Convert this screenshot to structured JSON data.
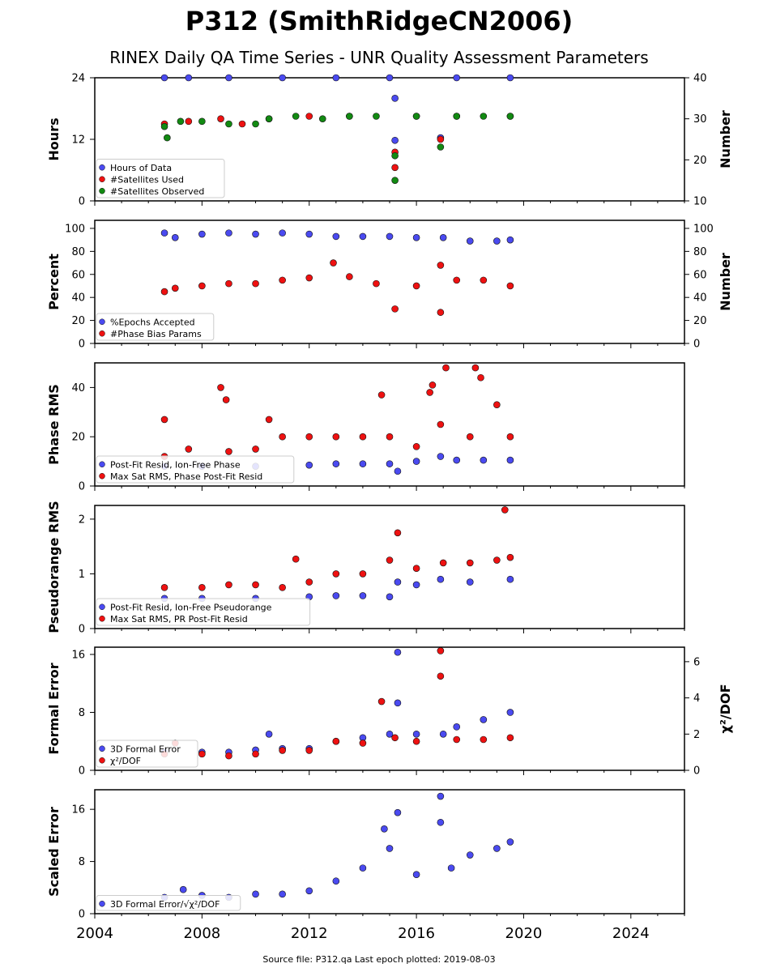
{
  "title": "P312 (SmithRidgeCN2006)",
  "subtitle": "RINEX Daily QA Time Series - UNR Quality Assessment Parameters",
  "footer": "Source file: P312.qa Last epoch plotted: 2019-08-03",
  "colors": {
    "blue": "#4a4af0",
    "red": "#ee1111",
    "green": "#128a12"
  },
  "chart_data": {
    "type": "scatter",
    "x_axis": {
      "ticks": [
        2004,
        2008,
        2012,
        2016,
        2020,
        2024
      ],
      "xlim": [
        2004,
        2026
      ]
    },
    "panels": [
      {
        "ylabel_left": "Hours",
        "ylabel_right": "Number",
        "yticks_left": [
          0,
          12,
          24
        ],
        "ylim_left": [
          0,
          24
        ],
        "yticks_right": [
          10,
          20,
          30,
          40
        ],
        "ylim_right": [
          10,
          40
        ],
        "series": [
          {
            "name": "Hours of Data",
            "color": "blue",
            "axis": "left",
            "points": [
              [
                2006.6,
                24
              ],
              [
                2007.5,
                24
              ],
              [
                2009,
                24
              ],
              [
                2011,
                24
              ],
              [
                2013,
                24
              ],
              [
                2015,
                24
              ],
              [
                2015.2,
                20
              ],
              [
                2015.2,
                11.8
              ],
              [
                2016.9,
                12.3
              ],
              [
                2017.5,
                24
              ],
              [
                2019.5,
                24
              ]
            ]
          },
          {
            "name": "#Satellites Used",
            "color": "red",
            "axis": "left",
            "points": [
              [
                2006.6,
                15
              ],
              [
                2007.5,
                15.5
              ],
              [
                2008.7,
                16
              ],
              [
                2009.5,
                15
              ],
              [
                2010.5,
                16
              ],
              [
                2012,
                16.5
              ],
              [
                2013.5,
                16.5
              ],
              [
                2015.2,
                6.5
              ],
              [
                2015.2,
                9.5
              ],
              [
                2016,
                16.5
              ],
              [
                2016.9,
                12
              ],
              [
                2017.5,
                16.5
              ],
              [
                2019.5,
                16.5
              ]
            ]
          },
          {
            "name": "#Satellites Observed",
            "color": "green",
            "axis": "left",
            "points": [
              [
                2006.6,
                14.5
              ],
              [
                2006.7,
                12.3
              ],
              [
                2007.2,
                15.5
              ],
              [
                2008,
                15.5
              ],
              [
                2009,
                15
              ],
              [
                2010,
                15
              ],
              [
                2010.5,
                16
              ],
              [
                2011.5,
                16.5
              ],
              [
                2012.5,
                16
              ],
              [
                2013.5,
                16.5
              ],
              [
                2014.5,
                16.5
              ],
              [
                2015.2,
                4
              ],
              [
                2015.2,
                8.8
              ],
              [
                2016,
                16.5
              ],
              [
                2016.9,
                10.5
              ],
              [
                2017.5,
                16.5
              ],
              [
                2018.5,
                16.5
              ],
              [
                2019.5,
                16.5
              ]
            ]
          }
        ]
      },
      {
        "ylabel_left": "Percent",
        "ylabel_right": "Number",
        "yticks_left": [
          0,
          20,
          40,
          60,
          80,
          100
        ],
        "ylim_left": [
          0,
          107
        ],
        "yticks_right": [
          0,
          20,
          40,
          60,
          80,
          100
        ],
        "ylim_right": [
          0,
          107
        ],
        "series": [
          {
            "name": "%Epochs Accepted",
            "color": "blue",
            "axis": "left",
            "points": [
              [
                2006.6,
                96
              ],
              [
                2007,
                92
              ],
              [
                2008,
                95
              ],
              [
                2009,
                96
              ],
              [
                2010,
                95
              ],
              [
                2011,
                96
              ],
              [
                2012,
                95
              ],
              [
                2013,
                93
              ],
              [
                2014,
                93
              ],
              [
                2015,
                93
              ],
              [
                2016,
                92
              ],
              [
                2017,
                92
              ],
              [
                2018,
                89
              ],
              [
                2019,
                89
              ],
              [
                2019.5,
                90
              ]
            ]
          },
          {
            "name": "#Phase Bias Params",
            "color": "red",
            "axis": "left",
            "points": [
              [
                2006.6,
                45
              ],
              [
                2007,
                48
              ],
              [
                2008,
                50
              ],
              [
                2009,
                52
              ],
              [
                2010,
                52
              ],
              [
                2011,
                55
              ],
              [
                2012,
                57
              ],
              [
                2012.9,
                70
              ],
              [
                2013.5,
                58
              ],
              [
                2014.5,
                52
              ],
              [
                2015.2,
                30
              ],
              [
                2016,
                50
              ],
              [
                2016.9,
                68
              ],
              [
                2016.9,
                27
              ],
              [
                2017.5,
                55
              ],
              [
                2018.5,
                55
              ],
              [
                2019.5,
                50
              ]
            ]
          }
        ]
      },
      {
        "ylabel_left": "Phase RMS",
        "yticks_left": [
          0,
          20,
          40
        ],
        "ylim_left": [
          0,
          50
        ],
        "series": [
          {
            "name": "Post-Fit Resid, Ion-Free Phase",
            "color": "blue",
            "axis": "left",
            "points": [
              [
                2006.6,
                8
              ],
              [
                2008,
                8
              ],
              [
                2010,
                8
              ],
              [
                2012,
                8.5
              ],
              [
                2013,
                9
              ],
              [
                2014,
                9
              ],
              [
                2015,
                9
              ],
              [
                2015.3,
                6
              ],
              [
                2016,
                10
              ],
              [
                2016.9,
                12
              ],
              [
                2017.5,
                10.5
              ],
              [
                2018.5,
                10.5
              ],
              [
                2019.5,
                10.5
              ]
            ]
          },
          {
            "name": "Max Sat RMS, Phase Post-Fit Resid",
            "color": "red",
            "axis": "left",
            "points": [
              [
                2006.6,
                12
              ],
              [
                2006.6,
                27
              ],
              [
                2007.5,
                15
              ],
              [
                2008.7,
                40
              ],
              [
                2008.9,
                35
              ],
              [
                2009,
                14
              ],
              [
                2010,
                15
              ],
              [
                2010.5,
                27
              ],
              [
                2011,
                20
              ],
              [
                2012,
                20
              ],
              [
                2013,
                20
              ],
              [
                2014,
                20
              ],
              [
                2014.7,
                37
              ],
              [
                2015,
                20
              ],
              [
                2016,
                16
              ],
              [
                2016.5,
                38
              ],
              [
                2016.6,
                41
              ],
              [
                2016.9,
                25
              ],
              [
                2017.1,
                48
              ],
              [
                2018,
                20
              ],
              [
                2018.2,
                48
              ],
              [
                2018.4,
                44
              ],
              [
                2019,
                33
              ],
              [
                2019.5,
                20
              ]
            ]
          }
        ]
      },
      {
        "ylabel_left": "Pseudorange RMS",
        "yticks_left": [
          0,
          1,
          2
        ],
        "ylim_left": [
          0,
          2.25
        ],
        "series": [
          {
            "name": "Post-Fit Resid, Ion-Free Pseudorange",
            "color": "blue",
            "axis": "left",
            "points": [
              [
                2006.6,
                0.55
              ],
              [
                2008,
                0.55
              ],
              [
                2010,
                0.55
              ],
              [
                2012,
                0.58
              ],
              [
                2013,
                0.6
              ],
              [
                2014,
                0.6
              ],
              [
                2015,
                0.58
              ],
              [
                2015.3,
                0.85
              ],
              [
                2016,
                0.8
              ],
              [
                2016.9,
                0.9
              ],
              [
                2018,
                0.85
              ],
              [
                2019.5,
                0.9
              ]
            ]
          },
          {
            "name": "Max Sat RMS, PR Post-Fit Resid",
            "color": "red",
            "axis": "left",
            "points": [
              [
                2006.6,
                0.75
              ],
              [
                2008,
                0.75
              ],
              [
                2009,
                0.8
              ],
              [
                2010,
                0.8
              ],
              [
                2011,
                0.75
              ],
              [
                2011.5,
                1.27
              ],
              [
                2012,
                0.85
              ],
              [
                2013,
                1.0
              ],
              [
                2014,
                1.0
              ],
              [
                2015,
                1.25
              ],
              [
                2015.3,
                1.75
              ],
              [
                2016,
                1.1
              ],
              [
                2017,
                1.2
              ],
              [
                2018,
                1.2
              ],
              [
                2019,
                1.25
              ],
              [
                2019.3,
                2.17
              ],
              [
                2019.5,
                1.3
              ]
            ]
          }
        ]
      },
      {
        "ylabel_left": "Formal Error",
        "ylabel_right": "χ²/DOF",
        "yticks_left": [
          0,
          8,
          16
        ],
        "ylim_left": [
          0,
          17
        ],
        "yticks_right": [
          0,
          2,
          4,
          6
        ],
        "ylim_right": [
          0,
          6.8
        ],
        "series": [
          {
            "name": "3D Formal Error",
            "color": "blue",
            "axis": "left",
            "points": [
              [
                2006.6,
                2.5
              ],
              [
                2008,
                2.5
              ],
              [
                2009,
                2.5
              ],
              [
                2010,
                2.8
              ],
              [
                2010.5,
                5
              ],
              [
                2011,
                3
              ],
              [
                2012,
                3
              ],
              [
                2013,
                4
              ],
              [
                2014,
                4.5
              ],
              [
                2015,
                5
              ],
              [
                2015.3,
                16.3
              ],
              [
                2015.3,
                9.3
              ],
              [
                2016,
                5
              ],
              [
                2017,
                5
              ],
              [
                2017.5,
                6
              ],
              [
                2018.5,
                7
              ],
              [
                2019.5,
                8
              ]
            ]
          },
          {
            "name": "χ²/DOF",
            "color": "red",
            "axis": "right",
            "points": [
              [
                2006.6,
                0.9
              ],
              [
                2007,
                1.5
              ],
              [
                2008,
                0.9
              ],
              [
                2009,
                0.8
              ],
              [
                2010,
                0.9
              ],
              [
                2011,
                1.1
              ],
              [
                2012,
                1.1
              ],
              [
                2013,
                1.6
              ],
              [
                2014,
                1.5
              ],
              [
                2014.7,
                3.8
              ],
              [
                2015.2,
                1.8
              ],
              [
                2016,
                1.6
              ],
              [
                2016.9,
                6.6
              ],
              [
                2016.9,
                5.2
              ],
              [
                2017.5,
                1.7
              ],
              [
                2018.5,
                1.7
              ],
              [
                2019.5,
                1.8
              ]
            ]
          }
        ]
      },
      {
        "ylabel_left": "Scaled Error",
        "yticks_left": [
          0,
          8,
          16
        ],
        "ylim_left": [
          0,
          19
        ],
        "series": [
          {
            "name": "3D Formal Error/√χ²/DOF",
            "color": "blue",
            "axis": "left",
            "points": [
              [
                2006.6,
                2.5
              ],
              [
                2007.3,
                3.7
              ],
              [
                2008,
                2.8
              ],
              [
                2009,
                2.5
              ],
              [
                2010,
                3
              ],
              [
                2011,
                3
              ],
              [
                2012,
                3.5
              ],
              [
                2013,
                5
              ],
              [
                2014,
                7
              ],
              [
                2014.8,
                13
              ],
              [
                2015,
                10
              ],
              [
                2015.3,
                15.5
              ],
              [
                2016,
                6
              ],
              [
                2016.9,
                18
              ],
              [
                2016.9,
                14
              ],
              [
                2017.3,
                7
              ],
              [
                2018,
                9
              ],
              [
                2019,
                10
              ],
              [
                2019.5,
                11
              ]
            ]
          }
        ]
      }
    ]
  }
}
